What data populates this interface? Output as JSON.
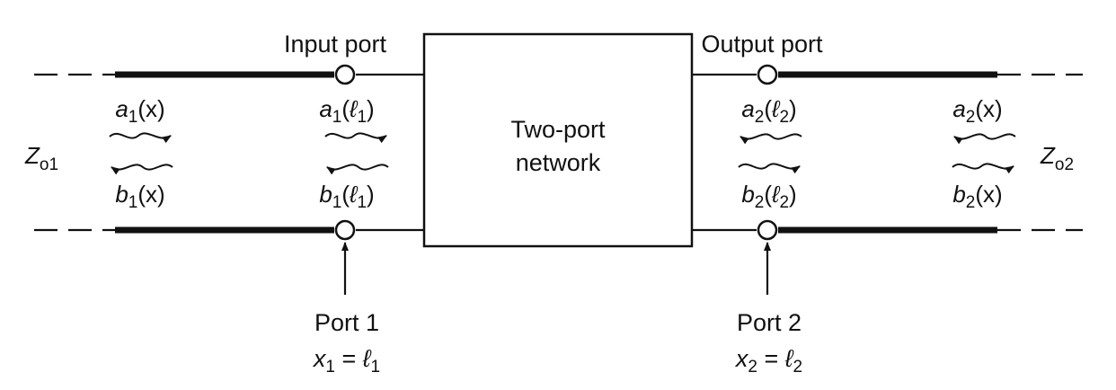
{
  "ports": {
    "input_label": "Input port",
    "output_label": "Output port",
    "port1": {
      "name": "Port 1",
      "x": "x",
      "x_sub": "1",
      "eq": " = ",
      "l": "ℓ",
      "l_sub": "1"
    },
    "port2": {
      "name": "Port 2",
      "x": "x",
      "x_sub": "2",
      "eq": " = ",
      "l": "ℓ",
      "l_sub": "2"
    }
  },
  "network": {
    "line1": "Two-port",
    "line2": "network"
  },
  "impedances": {
    "left": {
      "base": "Z",
      "sub": "o1"
    },
    "right": {
      "base": "Z",
      "sub": "o2"
    }
  },
  "waves": {
    "a1x": {
      "base": "a",
      "sub": "1",
      "arg": "(x)"
    },
    "b1x": {
      "base": "b",
      "sub": "1",
      "arg": "(x)"
    },
    "a1l1": {
      "base": "a",
      "sub": "1",
      "open": "(",
      "l": "ℓ",
      "lsub": "1",
      "close": ")"
    },
    "b1l1": {
      "base": "b",
      "sub": "1",
      "open": "(",
      "l": "ℓ",
      "lsub": "1",
      "close": ")"
    },
    "a2l2": {
      "base": "a",
      "sub": "2",
      "open": "(",
      "l": "ℓ",
      "lsub": "2",
      "close": ")"
    },
    "b2l2": {
      "base": "b",
      "sub": "2",
      "open": "(",
      "l": "ℓ",
      "lsub": "2",
      "close": ")"
    },
    "a2x": {
      "base": "a",
      "sub": "2",
      "arg": "(x)"
    },
    "b2x": {
      "base": "b",
      "sub": "2",
      "arg": "(x)"
    }
  }
}
